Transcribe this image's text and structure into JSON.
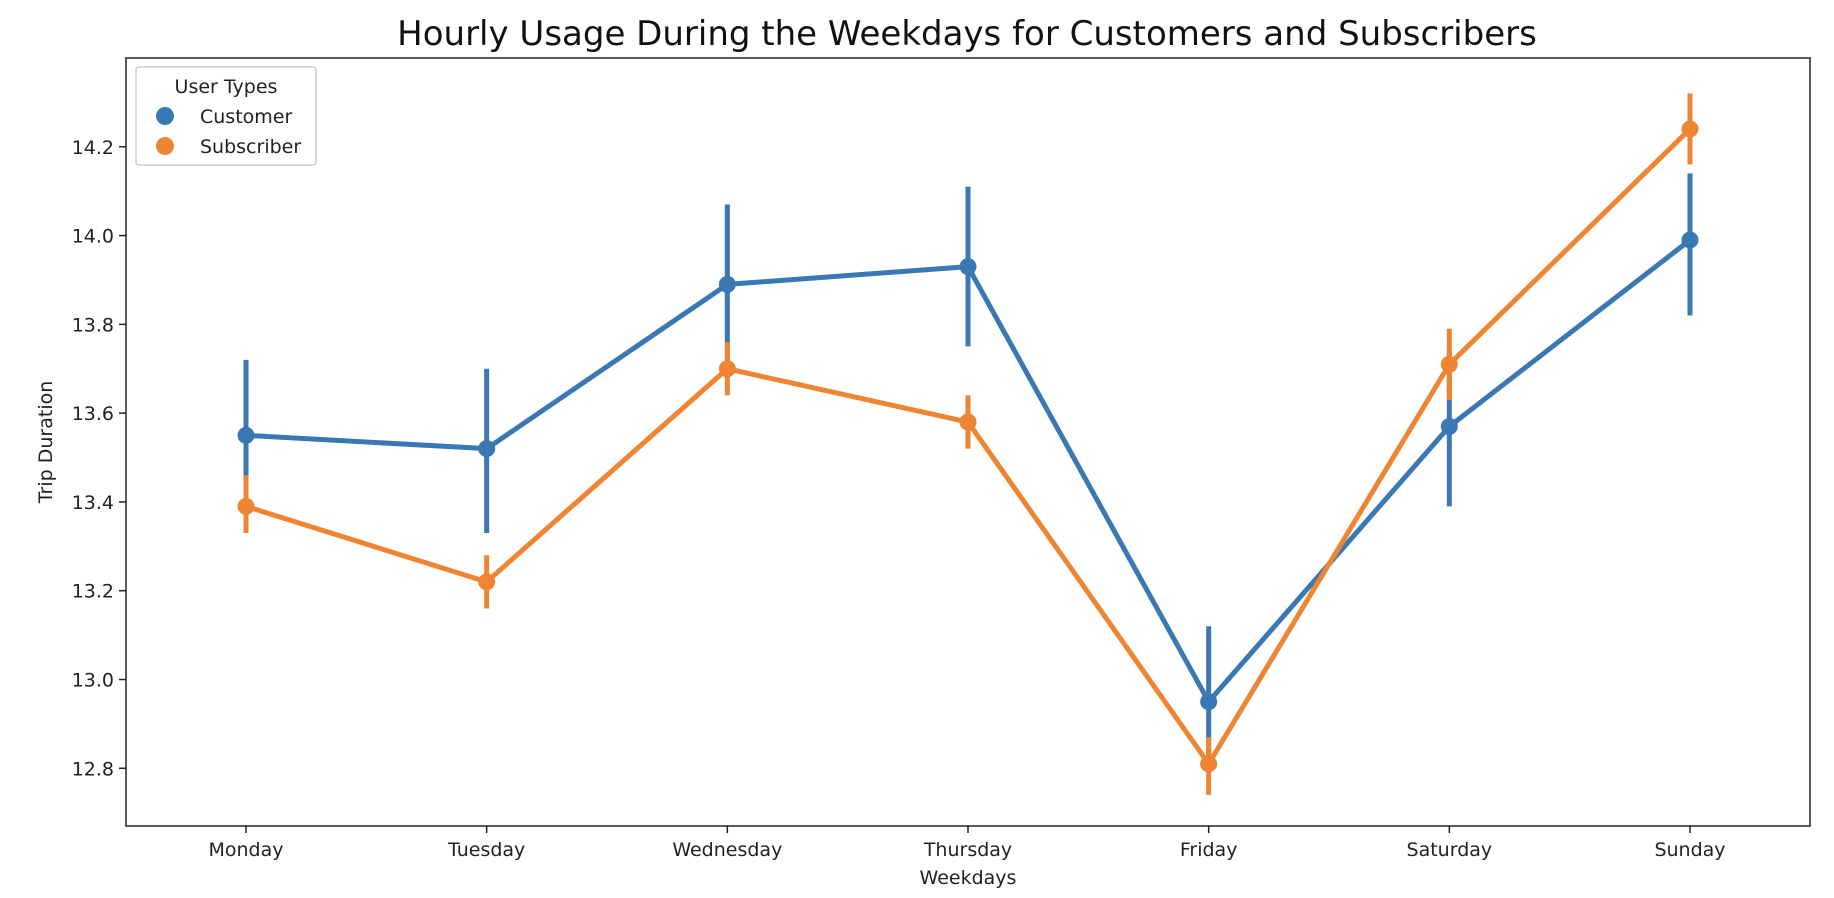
{
  "chart_data": {
    "type": "line",
    "title": "Hourly Usage During the Weekdays for Customers and Subscribers",
    "xlabel": "Weekdays",
    "ylabel": "Trip Duration",
    "categories": [
      "Monday",
      "Tuesday",
      "Wednesday",
      "Thursday",
      "Friday",
      "Saturday",
      "Sunday"
    ],
    "ylim": [
      12.67,
      14.4
    ],
    "yticks": [
      "12.8",
      "13.0",
      "13.2",
      "13.4",
      "13.6",
      "13.8",
      "14.0",
      "14.2"
    ],
    "grid": false,
    "legend": {
      "title": "User Types",
      "placement": "top-left"
    },
    "series": [
      {
        "name": "Customer",
        "color": "#3a78b4",
        "values": [
          13.55,
          13.52,
          13.89,
          13.93,
          12.95,
          13.57,
          13.99
        ],
        "ci_low": [
          13.36,
          13.33,
          13.71,
          13.75,
          12.8,
          13.39,
          13.82
        ],
        "ci_high": [
          13.72,
          13.7,
          14.07,
          14.11,
          13.12,
          13.74,
          14.14
        ]
      },
      {
        "name": "Subscriber",
        "color": "#ef8532",
        "values": [
          13.39,
          13.22,
          13.7,
          13.58,
          12.81,
          13.71,
          14.24
        ],
        "ci_low": [
          13.33,
          13.16,
          13.64,
          13.52,
          12.74,
          13.63,
          14.16
        ],
        "ci_high": [
          13.46,
          13.28,
          13.76,
          13.64,
          12.87,
          13.79,
          14.32
        ]
      }
    ]
  }
}
